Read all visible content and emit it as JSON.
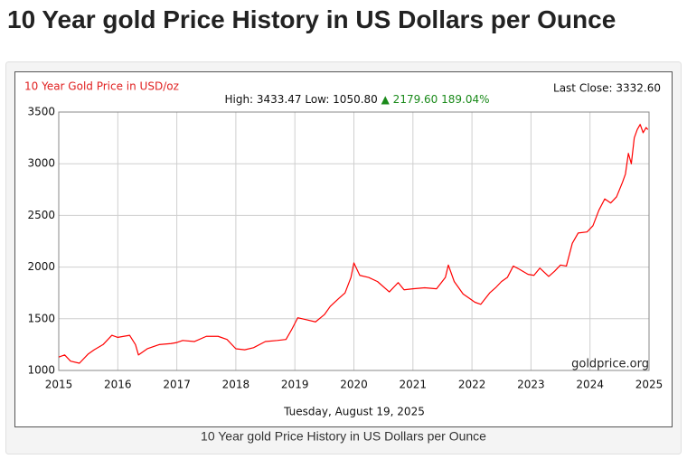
{
  "page_title": "10 Year gold Price History in US Dollars per Ounce",
  "caption": "10 Year gold Price History in US Dollars per Ounce",
  "chart_data": {
    "type": "line",
    "title": "10 Year Gold Price in USD/oz",
    "subtitle": "High: 3433.47 Low: 1050.80",
    "change": "▲ 2179.60 189.04%",
    "last_close": "Last Close: 3332.60",
    "watermark": "goldprice.org",
    "date_label": "Tuesday, August 19, 2025",
    "color": "#ff0000",
    "grid": true,
    "xlim": [
      2015,
      2025
    ],
    "xticks": [
      2015,
      2016,
      2017,
      2018,
      2019,
      2020,
      2021,
      2022,
      2023,
      2024,
      2025
    ],
    "ylim": [
      1000,
      3500
    ],
    "yticks": [
      1000,
      1500,
      2000,
      2500,
      3000,
      3500
    ],
    "x": [
      2015.0,
      2015.1,
      2015.2,
      2015.35,
      2015.5,
      2015.6,
      2015.75,
      2015.9,
      2016.0,
      2016.1,
      2016.2,
      2016.3,
      2016.35,
      2016.5,
      2016.7,
      2016.9,
      2017.0,
      2017.1,
      2017.3,
      2017.5,
      2017.7,
      2017.85,
      2018.0,
      2018.15,
      2018.3,
      2018.5,
      2018.7,
      2018.85,
      2018.95,
      2019.05,
      2019.2,
      2019.35,
      2019.5,
      2019.6,
      2019.75,
      2019.85,
      2019.95,
      2020.0,
      2020.1,
      2020.25,
      2020.4,
      2020.6,
      2020.75,
      2020.85,
      2021.0,
      2021.2,
      2021.4,
      2021.55,
      2021.6,
      2021.7,
      2021.85,
      2021.95,
      2022.05,
      2022.15,
      2022.3,
      2022.4,
      2022.5,
      2022.6,
      2022.7,
      2022.8,
      2022.95,
      2023.05,
      2023.15,
      2023.3,
      2023.4,
      2023.5,
      2023.6,
      2023.7,
      2023.8,
      2023.95,
      2024.05,
      2024.15,
      2024.25,
      2024.35,
      2024.45,
      2024.55,
      2024.6,
      2024.65,
      2024.7,
      2024.75,
      2024.8,
      2024.85,
      2024.9,
      2024.95,
      2024.98
    ],
    "series": [
      {
        "name": "Gold",
        "color": "#ff0000",
        "values": [
          1130,
          1150,
          1090,
          1070,
          1160,
          1200,
          1250,
          1340,
          1320,
          1330,
          1340,
          1250,
          1150,
          1210,
          1250,
          1260,
          1270,
          1290,
          1280,
          1330,
          1330,
          1300,
          1210,
          1200,
          1220,
          1280,
          1290,
          1300,
          1400,
          1510,
          1490,
          1470,
          1540,
          1620,
          1700,
          1750,
          1900,
          2040,
          1920,
          1900,
          1860,
          1760,
          1850,
          1780,
          1790,
          1800,
          1790,
          1900,
          2020,
          1860,
          1740,
          1700,
          1660,
          1640,
          1750,
          1800,
          1860,
          1900,
          2010,
          1980,
          1930,
          1920,
          1990,
          1910,
          1960,
          2020,
          2010,
          2230,
          2330,
          2340,
          2400,
          2550,
          2660,
          2620,
          2680,
          2820,
          2900,
          3100,
          3000,
          3250,
          3330,
          3380,
          3300,
          3350,
          3330
        ]
      }
    ]
  }
}
